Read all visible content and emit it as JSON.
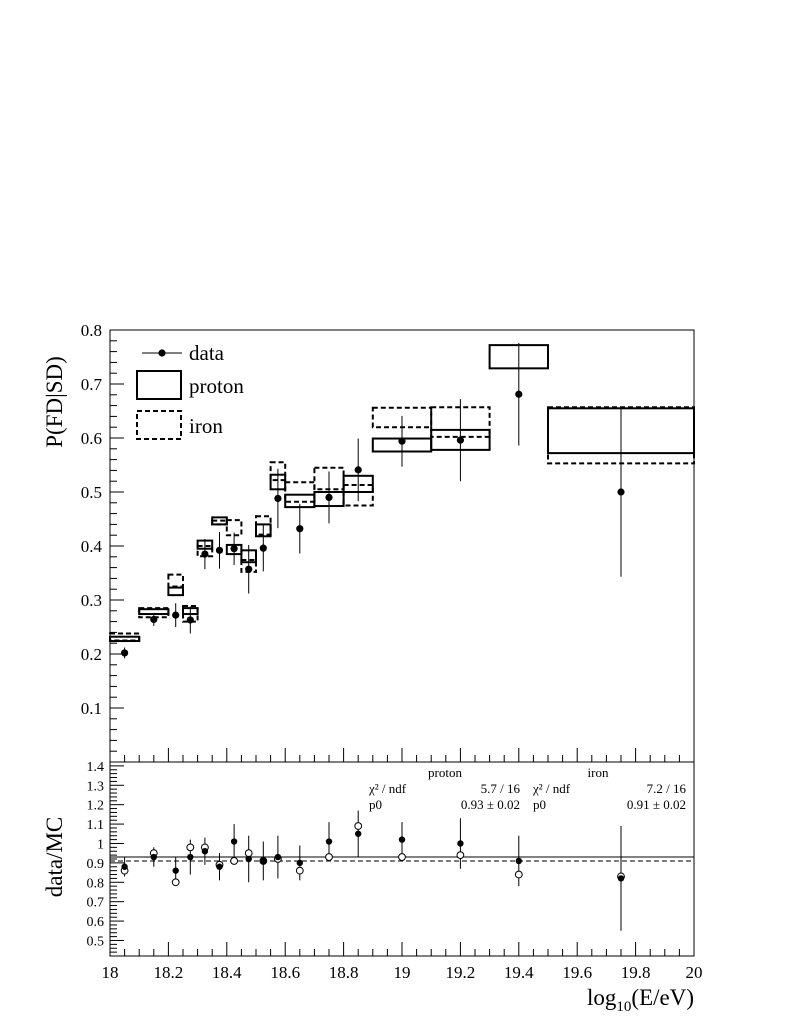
{
  "chart_data": [
    {
      "type": "scatter",
      "ylabel": "P(FD|SD)",
      "xlim": [
        18,
        20
      ],
      "ylim": [
        0,
        0.8
      ],
      "yticks": [
        0.1,
        0.2,
        0.3,
        0.4,
        0.5,
        0.6,
        0.7,
        0.8
      ],
      "legend": {
        "placement": "top-left",
        "entries": [
          {
            "label": "data",
            "style": "marker-line"
          },
          {
            "label": "proton",
            "style": "solid-box"
          },
          {
            "label": "iron",
            "style": "dashed-box"
          }
        ]
      },
      "series": [
        {
          "name": "data",
          "style": "points-with-errors",
          "points": [
            {
              "x": 18.05,
              "y": 0.202,
              "err": 0.01
            },
            {
              "x": 18.15,
              "y": 0.264,
              "err": 0.012
            },
            {
              "x": 18.225,
              "y": 0.272,
              "err": 0.022
            },
            {
              "x": 18.275,
              "y": 0.263,
              "err": 0.025
            },
            {
              "x": 18.325,
              "y": 0.385,
              "err": 0.028
            },
            {
              "x": 18.375,
              "y": 0.392,
              "err": 0.034
            },
            {
              "x": 18.425,
              "y": 0.395,
              "err": 0.03
            },
            {
              "x": 18.475,
              "y": 0.357,
              "err": 0.045
            },
            {
              "x": 18.525,
              "y": 0.396,
              "err": 0.043
            },
            {
              "x": 18.575,
              "y": 0.488,
              "err": 0.055
            },
            {
              "x": 18.65,
              "y": 0.432,
              "err": 0.046
            },
            {
              "x": 18.75,
              "y": 0.49,
              "err": 0.048
            },
            {
              "x": 18.85,
              "y": 0.541,
              "err": 0.058
            },
            {
              "x": 19.0,
              "y": 0.594,
              "err": 0.047
            },
            {
              "x": 19.2,
              "y": 0.596,
              "err": 0.076
            },
            {
              "x": 19.4,
              "y": 0.681,
              "err": 0.095
            },
            {
              "x": 19.75,
              "y": 0.5,
              "err": 0.157
            }
          ]
        },
        {
          "name": "proton",
          "style": "solid-box",
          "boxes": [
            {
              "x0": 18.0,
              "x1": 18.1,
              "y0": 0.224,
              "y1": 0.232
            },
            {
              "x0": 18.1,
              "x1": 18.2,
              "y0": 0.274,
              "y1": 0.283
            },
            {
              "x0": 18.2,
              "x1": 18.25,
              "y0": 0.309,
              "y1": 0.323
            },
            {
              "x0": 18.25,
              "x1": 18.3,
              "y0": 0.274,
              "y1": 0.285
            },
            {
              "x0": 18.3,
              "x1": 18.35,
              "y0": 0.395,
              "y1": 0.41
            },
            {
              "x0": 18.35,
              "x1": 18.4,
              "y0": 0.44,
              "y1": 0.453
            },
            {
              "x0": 18.4,
              "x1": 18.45,
              "y0": 0.385,
              "y1": 0.402
            },
            {
              "x0": 18.45,
              "x1": 18.5,
              "y0": 0.37,
              "y1": 0.392
            },
            {
              "x0": 18.5,
              "x1": 18.55,
              "y0": 0.418,
              "y1": 0.44
            },
            {
              "x0": 18.55,
              "x1": 18.6,
              "y0": 0.505,
              "y1": 0.532
            },
            {
              "x0": 18.6,
              "x1": 18.7,
              "y0": 0.472,
              "y1": 0.495
            },
            {
              "x0": 18.7,
              "x1": 18.8,
              "y0": 0.474,
              "y1": 0.5
            },
            {
              "x0": 18.8,
              "x1": 18.9,
              "y0": 0.5,
              "y1": 0.53
            },
            {
              "x0": 18.9,
              "x1": 19.1,
              "y0": 0.575,
              "y1": 0.599
            },
            {
              "x0": 19.1,
              "x1": 19.3,
              "y0": 0.578,
              "y1": 0.615
            },
            {
              "x0": 19.3,
              "x1": 19.5,
              "y0": 0.729,
              "y1": 0.772
            },
            {
              "x0": 19.5,
              "x1": 20.0,
              "y0": 0.572,
              "y1": 0.655
            }
          ]
        },
        {
          "name": "iron",
          "style": "dashed-box",
          "boxes": [
            {
              "x0": 18.0,
              "x1": 18.1,
              "y0": 0.225,
              "y1": 0.238
            },
            {
              "x0": 18.1,
              "x1": 18.2,
              "y0": 0.268,
              "y1": 0.285
            },
            {
              "x0": 18.2,
              "x1": 18.25,
              "y0": 0.325,
              "y1": 0.347
            },
            {
              "x0": 18.25,
              "x1": 18.3,
              "y0": 0.26,
              "y1": 0.289
            },
            {
              "x0": 18.3,
              "x1": 18.35,
              "y0": 0.381,
              "y1": 0.4
            },
            {
              "x0": 18.35,
              "x1": 18.4,
              "y0": 0.44,
              "y1": 0.447
            },
            {
              "x0": 18.4,
              "x1": 18.45,
              "y0": 0.42,
              "y1": 0.448
            },
            {
              "x0": 18.45,
              "x1": 18.5,
              "y0": 0.352,
              "y1": 0.374
            },
            {
              "x0": 18.5,
              "x1": 18.55,
              "y0": 0.421,
              "y1": 0.455
            },
            {
              "x0": 18.55,
              "x1": 18.6,
              "y0": 0.522,
              "y1": 0.555
            },
            {
              "x0": 18.6,
              "x1": 18.7,
              "y0": 0.482,
              "y1": 0.518
            },
            {
              "x0": 18.7,
              "x1": 18.8,
              "y0": 0.505,
              "y1": 0.545
            },
            {
              "x0": 18.8,
              "x1": 18.9,
              "y0": 0.475,
              "y1": 0.513
            },
            {
              "x0": 18.9,
              "x1": 19.1,
              "y0": 0.62,
              "y1": 0.656
            },
            {
              "x0": 19.1,
              "x1": 19.3,
              "y0": 0.602,
              "y1": 0.657
            },
            {
              "x0": 19.5,
              "x1": 20.0,
              "y0": 0.553,
              "y1": 0.657
            }
          ]
        }
      ]
    },
    {
      "type": "scatter",
      "xlabel": "log10(E/eV)",
      "ylabel": "data/MC",
      "xlim": [
        18,
        20
      ],
      "ylim": [
        0.42,
        1.42
      ],
      "xticks": [
        18,
        18.2,
        18.4,
        18.6,
        18.8,
        19,
        19.2,
        19.4,
        19.6,
        19.8,
        20
      ],
      "yticks": [
        0.5,
        0.6,
        0.7,
        0.8,
        0.9,
        1,
        1.1,
        1.2,
        1.3,
        1.4
      ],
      "fits": [
        {
          "name": "proton",
          "style": "solid-line",
          "p0": 0.93
        },
        {
          "name": "iron",
          "style": "dashed-line",
          "p0": 0.91
        }
      ],
      "series": [
        {
          "name": "proton",
          "style": "filled-points",
          "points": [
            {
              "x": 18.05,
              "y": 0.88,
              "err": 0.05
            },
            {
              "x": 18.15,
              "y": 0.93,
              "err": 0.05
            },
            {
              "x": 18.225,
              "y": 0.86,
              "err": 0.07
            },
            {
              "x": 18.275,
              "y": 0.93,
              "err": 0.09
            },
            {
              "x": 18.325,
              "y": 0.96,
              "err": 0.07
            },
            {
              "x": 18.375,
              "y": 0.88,
              "err": 0.07
            },
            {
              "x": 18.425,
              "y": 1.01,
              "err": 0.09
            },
            {
              "x": 18.475,
              "y": 0.92,
              "err": 0.12
            },
            {
              "x": 18.525,
              "y": 0.91,
              "err": 0.1
            },
            {
              "x": 18.575,
              "y": 0.93,
              "err": 0.11
            },
            {
              "x": 18.65,
              "y": 0.9,
              "err": 0.09
            },
            {
              "x": 18.75,
              "y": 1.01,
              "err": 0.1
            },
            {
              "x": 18.85,
              "y": 1.05,
              "err": 0.12
            },
            {
              "x": 19.0,
              "y": 1.02,
              "err": 0.09
            },
            {
              "x": 19.2,
              "y": 1.0,
              "err": 0.13
            },
            {
              "x": 19.4,
              "y": 0.91,
              "err": 0.13
            },
            {
              "x": 19.75,
              "y": 0.82,
              "err": 0.27
            }
          ]
        },
        {
          "name": "iron",
          "style": "open-points",
          "points": [
            {
              "x": 18.05,
              "y": 0.86
            },
            {
              "x": 18.15,
              "y": 0.95
            },
            {
              "x": 18.225,
              "y": 0.8
            },
            {
              "x": 18.275,
              "y": 0.98
            },
            {
              "x": 18.325,
              "y": 0.98
            },
            {
              "x": 18.375,
              "y": 0.89
            },
            {
              "x": 18.425,
              "y": 0.91
            },
            {
              "x": 18.475,
              "y": 0.95
            },
            {
              "x": 18.525,
              "y": 0.91
            },
            {
              "x": 18.575,
              "y": 0.92
            },
            {
              "x": 18.65,
              "y": 0.86
            },
            {
              "x": 18.75,
              "y": 0.93
            },
            {
              "x": 18.85,
              "y": 1.09
            },
            {
              "x": 19.0,
              "y": 0.93
            },
            {
              "x": 19.2,
              "y": 0.94
            },
            {
              "x": 19.4,
              "y": 0.84
            },
            {
              "x": 19.75,
              "y": 0.83
            }
          ]
        }
      ],
      "fit_stats": [
        {
          "title": "proton",
          "chi2_label": "χ² / ndf",
          "chi2_value": "5.7 / 16",
          "p0_label": "p0",
          "p0_value": "0.93 ± 0.02"
        },
        {
          "title": "iron",
          "chi2_label": "χ² / ndf",
          "chi2_value": "7.2 / 16",
          "p0_label": "p0",
          "p0_value": "0.91 ± 0.02"
        }
      ]
    }
  ]
}
